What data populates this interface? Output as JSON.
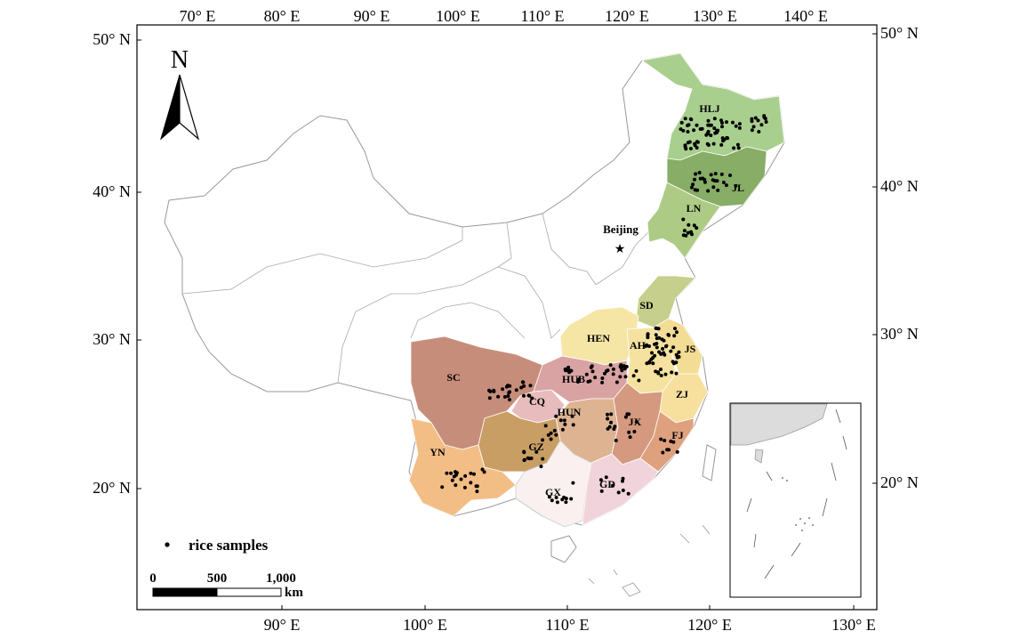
{
  "map": {
    "top_longitude_labels": [
      "70° E",
      "80° E",
      "90° E",
      "100° E",
      "110° E",
      "120° E",
      "130° E",
      "140° E"
    ],
    "bottom_longitude_labels": [
      "90° E",
      "100° E",
      "110° E",
      "120° E",
      "130° E"
    ],
    "left_latitude_labels": [
      "50° N",
      "40° N",
      "30° N",
      "20° N"
    ],
    "right_latitude_labels": [
      "50° N",
      "40° N",
      "30° N",
      "20° N"
    ],
    "north_arrow_label": "N",
    "capital_label": "Beijing",
    "capital_marker_color": "#e02020",
    "sample_dot_color": "#000000",
    "provinces": [
      {
        "code": "HLJ",
        "color": "#a9cf8f"
      },
      {
        "code": "JL",
        "color": "#87ad66"
      },
      {
        "code": "LN",
        "color": "#aecb86"
      },
      {
        "code": "SD",
        "color": "#c6cf8b"
      },
      {
        "code": "HEN",
        "color": "#f6e6a6"
      },
      {
        "code": "AH",
        "color": "#f6e2a0"
      },
      {
        "code": "JS",
        "color": "#f3dc93"
      },
      {
        "code": "ZJ",
        "color": "#f7df9e"
      },
      {
        "code": "SC",
        "color": "#c78d7b"
      },
      {
        "code": "CQ",
        "color": "#e8bcbc"
      },
      {
        "code": "HUB",
        "color": "#d9a3a3"
      },
      {
        "code": "HUN",
        "color": "#ddb391"
      },
      {
        "code": "JX",
        "color": "#d4997e"
      },
      {
        "code": "FJ",
        "color": "#dfa07e"
      },
      {
        "code": "YN",
        "color": "#f3be86"
      },
      {
        "code": "GZ",
        "color": "#c99e64"
      },
      {
        "code": "GX",
        "color": "#faf0f0"
      },
      {
        "code": "GD",
        "color": "#f1d3db"
      }
    ],
    "legend": {
      "label": "rice samples"
    },
    "scale_bar": {
      "ticks": [
        "0",
        "500",
        "1,000"
      ],
      "unit": "km"
    }
  }
}
